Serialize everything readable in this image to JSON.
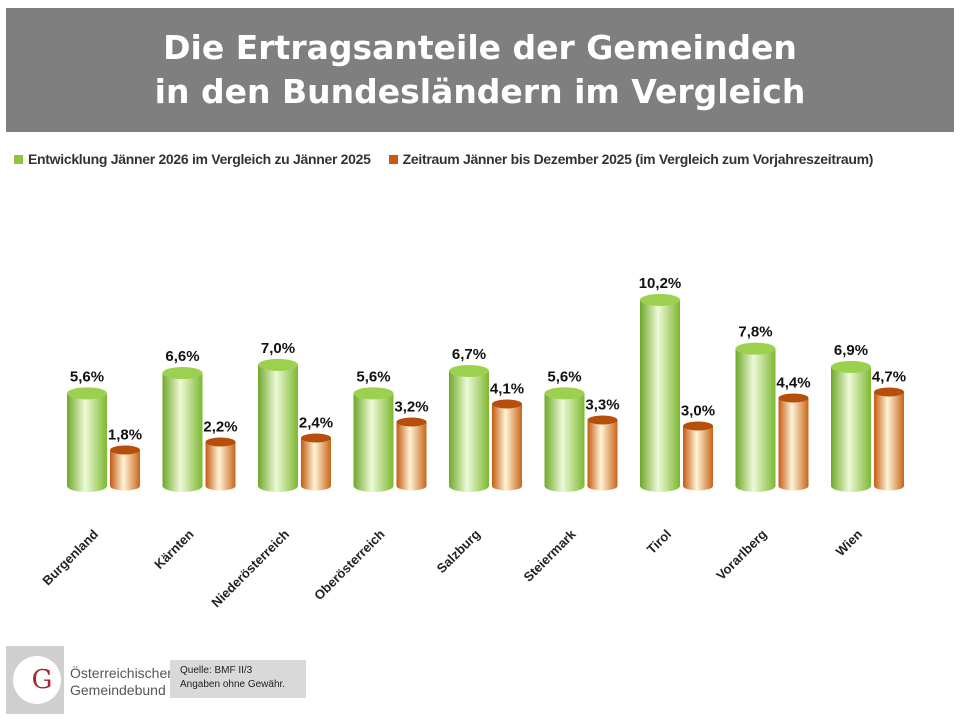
{
  "title": {
    "line1": "Die Ertragsanteile der Gemeinden",
    "line2": "in den Bundesländern im Vergleich"
  },
  "source": {
    "line1": "Quelle: BMF II/3",
    "line2": "Angaben ohne Gewähr."
  },
  "logo": {
    "name_line1": "Österreichischer",
    "name_line2": "Gemeindebund",
    "monogram": "ÖG"
  },
  "chart_data": {
    "type": "bar",
    "style": "3d-cylinder",
    "legend_position": "top",
    "grid": false,
    "categories": [
      "Burgenland",
      "Kärnten",
      "Niederösterreich",
      "Oberösterreich",
      "Salzburg",
      "Steiermark",
      "Tirol",
      "Vorarlberg",
      "Wien"
    ],
    "series": [
      {
        "name": "Entwicklung Jänner 2026 im Vergleich zu Jänner 2025",
        "color": "#8cc63f",
        "values": [
          5.6,
          6.6,
          7.0,
          5.6,
          6.7,
          5.6,
          10.2,
          7.8,
          6.9
        ],
        "labels": [
          "5,6%",
          "6,6%",
          "7,0%",
          "5,6%",
          "6,7%",
          "5,6%",
          "10,2%",
          "7,8%",
          "6,9%"
        ]
      },
      {
        "name": "Zeitraum Jänner bis Dezember 2025 (im Vergleich zum Vorjahreszeitraum)",
        "color": "#c55a11",
        "values": [
          1.8,
          2.2,
          2.4,
          3.2,
          4.1,
          3.3,
          3.0,
          4.4,
          4.7
        ],
        "labels": [
          "1,8%",
          "2,2%",
          "2,4%",
          "3,2%",
          "4,1%",
          "3,3%",
          "3,0%",
          "4,4%",
          "4,7%"
        ]
      }
    ]
  }
}
